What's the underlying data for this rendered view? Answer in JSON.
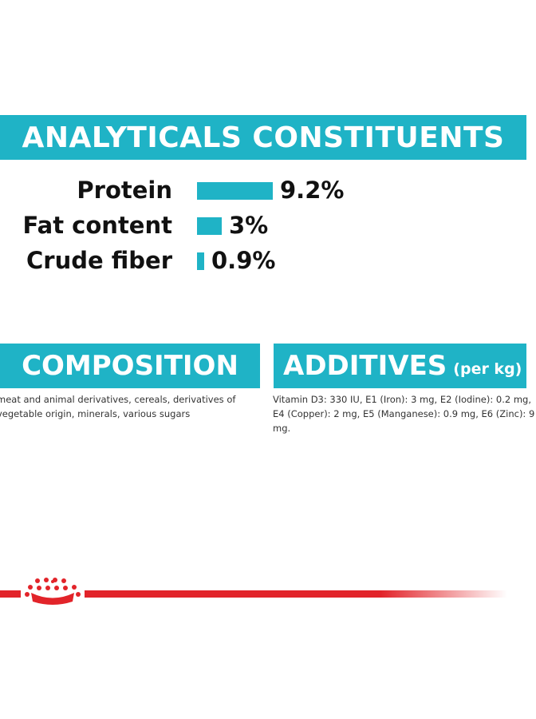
{
  "analytics": {
    "title": "ANALYTICALS CONSTITUENTS",
    "rows": [
      {
        "label": "Protein",
        "value": "9.2%",
        "percent": 9.2
      },
      {
        "label": "Fat content",
        "value": "3%",
        "percent": 3
      },
      {
        "label": "Crude fiber",
        "value": "0.9%",
        "percent": 0.9
      }
    ]
  },
  "composition": {
    "title": "COMPOSITION",
    "text": "meat and animal derivatives, cereals, derivatives of vegetable origin, minerals, various sugars"
  },
  "additives": {
    "title": "ADDITIVES",
    "title_suffix": "(per kg)",
    "text": "Vitamin D3: 330 IU, E1 (Iron): 3 mg, E2 (Iodine): 0.2 mg, E4 (Copper): 2 mg, E5 (Manganese): 0.9 mg, E6 (Zinc): 9 mg."
  },
  "brand": {
    "logo_icon": "crown-logo-icon",
    "colors": {
      "accent": "#1fb3c6",
      "brand_red": "#e2242a",
      "text": "#111111"
    }
  }
}
